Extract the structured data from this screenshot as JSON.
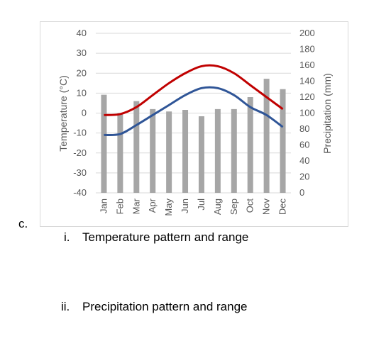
{
  "question": {
    "letter": "c.",
    "items": [
      {
        "num": "i.",
        "text": "Temperature pattern and range"
      },
      {
        "num": "ii.",
        "text": "Precipitation pattern and range"
      }
    ]
  },
  "chart_data": {
    "type": "bar+line",
    "categories": [
      "Jan",
      "Feb",
      "Mar",
      "Apr",
      "May",
      "Jun",
      "Jul",
      "Aug",
      "Sep",
      "Oct",
      "Nov",
      "Dec"
    ],
    "ylabel_left": "Temperature (°C)",
    "ylabel_right": "Precipitation (mm)",
    "ylim_left": [
      -40,
      40
    ],
    "ylim_right": [
      0,
      200
    ],
    "yticks_left": [
      "40",
      "30",
      "20",
      "10",
      "0",
      "-10",
      "-20",
      "-30",
      "-40"
    ],
    "yticks_right": [
      "200",
      "180",
      "160",
      "140",
      "120",
      "100",
      "80",
      "60",
      "40",
      "20",
      "0"
    ],
    "series": [
      {
        "type": "bar",
        "axis": "right",
        "color": "#a6a6a6",
        "values": [
          123,
          100,
          115,
          105,
          102,
          104,
          96,
          105,
          105,
          120,
          143,
          130
        ]
      },
      {
        "type": "line",
        "axis": "left",
        "color": "#c00000",
        "values": [
          -1,
          -0.5,
          3,
          9,
          15,
          20,
          23.5,
          23.5,
          20,
          14,
          8,
          2
        ]
      },
      {
        "type": "line",
        "axis": "left",
        "color": "#2f5597",
        "values": [
          -11,
          -10.5,
          -6,
          -1,
          4,
          9,
          12.5,
          12.5,
          9,
          3,
          -1,
          -7
        ]
      }
    ],
    "legend": "none",
    "grid": "horizontal"
  }
}
